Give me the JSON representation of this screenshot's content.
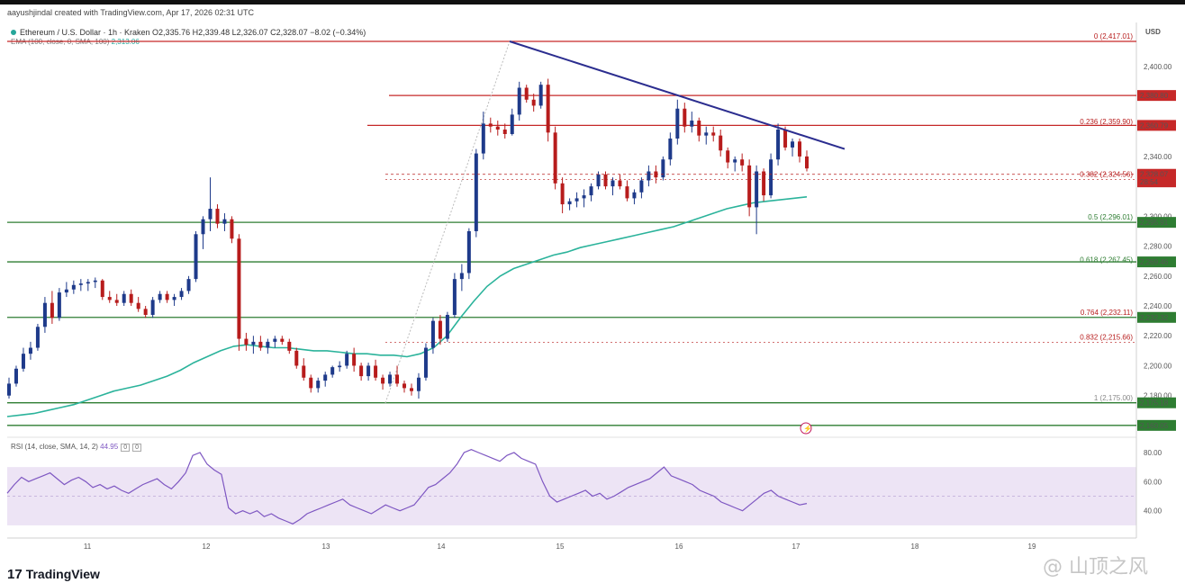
{
  "header": {
    "credit": "aayushjindal created with TradingView.com, Apr 17, 2026 02:31 UTC",
    "symbol": "Ethereum / U.S. Dollar · 1h · Kraken  O2,335.76  H2,339.48  L2,326.07  C2,328.07  −8.02 (−0.34%)",
    "ema_label": "EMA (100, close, 0, SMA, 100)",
    "ema_value": "2,313.06",
    "rsi_label": "RSI (14, close, SMA, 14, 2)",
    "rsi_value": "44.95",
    "rsi_box1": "0",
    "rsi_box2": "0"
  },
  "brand": {
    "logo_text": "TradingView",
    "logo_mark": "17",
    "watermark": "@ 山顶之风"
  },
  "colors": {
    "up": "#1e3a8a",
    "down": "#b71c1c",
    "ema": "#2bb39b",
    "trend": "#2b2d8f",
    "resistance": "#c62828",
    "support": "#2e7d32",
    "rsi": "#7e57c2",
    "rsi_band": "#ede4f5"
  },
  "chart_data": {
    "type": "candlestick",
    "currency": "USD",
    "x_ticks": [
      "11",
      "12",
      "13",
      "14",
      "15",
      "16",
      "17",
      "18",
      "19"
    ],
    "y_ticks": [
      "2,400.00",
      "2,340.00",
      "2,300.00",
      "2,280.00",
      "2,260.00",
      "2,240.00",
      "2,220.00",
      "2,200.00",
      "2,180.00"
    ],
    "y_tick_values": [
      2400,
      2340,
      2300,
      2280,
      2260,
      2240,
      2220,
      2200,
      2180
    ],
    "y_range": [
      2157,
      2424
    ],
    "price_labels": [
      {
        "text": "2,380.80",
        "value": 2380.8,
        "style": "red"
      },
      {
        "text": "2,360.79",
        "value": 2360.79,
        "style": "red"
      },
      {
        "text": "2,328.07",
        "value": 2328.07,
        "style": "red"
      },
      {
        "text": "28:54",
        "value": 2323,
        "style": "red"
      },
      {
        "text": "2,295.91",
        "value": 2295.91,
        "style": "green"
      },
      {
        "text": "2,269.46",
        "value": 2269.46,
        "style": "green"
      },
      {
        "text": "2,232.32",
        "value": 2232.32,
        "style": "green"
      },
      {
        "text": "2,175.18",
        "value": 2175.18,
        "style": "green"
      },
      {
        "text": "2,160.05",
        "value": 2160.05,
        "style": "green"
      }
    ],
    "horizontal_lines": [
      {
        "value": 2417.01,
        "style": "resistance"
      },
      {
        "value": 2380.8,
        "style": "resistance"
      },
      {
        "value": 2360.79,
        "style": "resistance"
      },
      {
        "value": 2295.91,
        "style": "support"
      },
      {
        "value": 2269.46,
        "style": "support"
      },
      {
        "value": 2232.32,
        "style": "support"
      },
      {
        "value": 2175.18,
        "style": "support"
      },
      {
        "value": 2160.05,
        "style": "support"
      }
    ],
    "fib_levels": [
      {
        "label": "0 (2,417.01)",
        "value": 2417.01
      },
      {
        "label": "0.236 (2,359.90)",
        "value": 2359.9
      },
      {
        "label": "0.382 (2,324.56)",
        "value": 2324.56
      },
      {
        "label": "0.5 (2,296.01)",
        "value": 2296.01
      },
      {
        "label": "0.618 (2,267.45)",
        "value": 2267.45
      },
      {
        "label": "0.764 (2,232.11)",
        "value": 2232.11
      },
      {
        "label": "0.832 (2,215.66)",
        "value": 2215.66
      },
      {
        "label": "1 (2,175.00)",
        "value": 2175.0
      }
    ],
    "candles": [
      [
        2180,
        2192,
        2178,
        2188
      ],
      [
        2188,
        2200,
        2186,
        2198
      ],
      [
        2198,
        2212,
        2196,
        2208
      ],
      [
        2208,
        2216,
        2204,
        2212
      ],
      [
        2212,
        2228,
        2210,
        2226
      ],
      [
        2226,
        2246,
        2222,
        2242
      ],
      [
        2242,
        2250,
        2228,
        2232
      ],
      [
        2232,
        2252,
        2230,
        2249
      ],
      [
        2249,
        2256,
        2246,
        2251
      ],
      [
        2251,
        2257,
        2248,
        2254
      ],
      [
        2254,
        2258,
        2250,
        2255
      ],
      [
        2255,
        2258,
        2250,
        2256
      ],
      [
        2256,
        2259,
        2252,
        2257
      ],
      [
        2257,
        2258,
        2244,
        2246
      ],
      [
        2246,
        2250,
        2242,
        2244
      ],
      [
        2244,
        2248,
        2240,
        2242
      ],
      [
        2242,
        2250,
        2240,
        2248
      ],
      [
        2248,
        2251,
        2240,
        2242
      ],
      [
        2242,
        2246,
        2236,
        2238
      ],
      [
        2238,
        2240,
        2232,
        2234
      ],
      [
        2234,
        2246,
        2232,
        2244
      ],
      [
        2244,
        2250,
        2242,
        2248
      ],
      [
        2248,
        2250,
        2242,
        2244
      ],
      [
        2244,
        2248,
        2240,
        2246
      ],
      [
        2246,
        2252,
        2244,
        2250
      ],
      [
        2250,
        2260,
        2248,
        2258
      ],
      [
        2258,
        2290,
        2256,
        2288
      ],
      [
        2288,
        2300,
        2278,
        2298
      ],
      [
        2298,
        2326,
        2290,
        2305
      ],
      [
        2305,
        2308,
        2292,
        2295
      ],
      [
        2295,
        2302,
        2290,
        2298
      ],
      [
        2298,
        2300,
        2282,
        2285
      ],
      [
        2285,
        2288,
        2210,
        2218
      ],
      [
        2218,
        2222,
        2210,
        2214
      ],
      [
        2214,
        2220,
        2208,
        2216
      ],
      [
        2216,
        2220,
        2210,
        2212
      ],
      [
        2212,
        2218,
        2208,
        2216
      ],
      [
        2216,
        2220,
        2212,
        2218
      ],
      [
        2218,
        2220,
        2214,
        2216
      ],
      [
        2216,
        2218,
        2208,
        2210
      ],
      [
        2210,
        2212,
        2198,
        2200
      ],
      [
        2200,
        2205,
        2190,
        2192
      ],
      [
        2192,
        2194,
        2182,
        2185
      ],
      [
        2185,
        2192,
        2182,
        2190
      ],
      [
        2190,
        2196,
        2186,
        2194
      ],
      [
        2194,
        2200,
        2192,
        2199
      ],
      [
        2199,
        2203,
        2196,
        2200
      ],
      [
        2200,
        2210,
        2198,
        2208
      ],
      [
        2208,
        2212,
        2196,
        2200
      ],
      [
        2200,
        2202,
        2190,
        2193
      ],
      [
        2193,
        2202,
        2190,
        2200
      ],
      [
        2200,
        2204,
        2190,
        2192
      ],
      [
        2192,
        2194,
        2184,
        2188
      ],
      [
        2188,
        2196,
        2186,
        2194
      ],
      [
        2194,
        2200,
        2186,
        2188
      ],
      [
        2188,
        2190,
        2182,
        2185
      ],
      [
        2185,
        2188,
        2180,
        2183
      ],
      [
        2183,
        2195,
        2178,
        2192
      ],
      [
        2192,
        2215,
        2190,
        2212
      ],
      [
        2212,
        2232,
        2208,
        2230
      ],
      [
        2230,
        2234,
        2214,
        2218
      ],
      [
        2218,
        2236,
        2216,
        2234
      ],
      [
        2234,
        2262,
        2232,
        2258
      ],
      [
        2258,
        2268,
        2250,
        2262
      ],
      [
        2262,
        2292,
        2258,
        2290
      ],
      [
        2290,
        2345,
        2286,
        2342
      ],
      [
        2342,
        2370,
        2338,
        2362
      ],
      [
        2362,
        2366,
        2356,
        2360
      ],
      [
        2360,
        2364,
        2354,
        2358
      ],
      [
        2358,
        2362,
        2352,
        2355
      ],
      [
        2355,
        2372,
        2354,
        2368
      ],
      [
        2368,
        2390,
        2364,
        2386
      ],
      [
        2386,
        2388,
        2376,
        2378
      ],
      [
        2378,
        2382,
        2370,
        2374
      ],
      [
        2374,
        2390,
        2372,
        2388
      ],
      [
        2388,
        2392,
        2350,
        2356
      ],
      [
        2356,
        2360,
        2318,
        2322
      ],
      [
        2322,
        2326,
        2302,
        2308
      ],
      [
        2308,
        2312,
        2304,
        2310
      ],
      [
        2310,
        2316,
        2306,
        2312
      ],
      [
        2312,
        2318,
        2306,
        2314
      ],
      [
        2314,
        2322,
        2310,
        2320
      ],
      [
        2320,
        2330,
        2318,
        2328
      ],
      [
        2328,
        2330,
        2318,
        2320
      ],
      [
        2320,
        2326,
        2314,
        2324
      ],
      [
        2324,
        2328,
        2318,
        2320
      ],
      [
        2320,
        2324,
        2310,
        2312
      ],
      [
        2312,
        2318,
        2308,
        2316
      ],
      [
        2316,
        2326,
        2312,
        2324
      ],
      [
        2324,
        2334,
        2320,
        2330
      ],
      [
        2330,
        2334,
        2322,
        2326
      ],
      [
        2326,
        2340,
        2324,
        2338
      ],
      [
        2338,
        2356,
        2334,
        2352
      ],
      [
        2352,
        2378,
        2348,
        2372
      ],
      [
        2372,
        2376,
        2356,
        2360
      ],
      [
        2360,
        2370,
        2356,
        2364
      ],
      [
        2364,
        2366,
        2350,
        2354
      ],
      [
        2354,
        2360,
        2348,
        2356
      ],
      [
        2356,
        2360,
        2350,
        2354
      ],
      [
        2354,
        2358,
        2340,
        2344
      ],
      [
        2344,
        2346,
        2332,
        2336
      ],
      [
        2336,
        2340,
        2330,
        2338
      ],
      [
        2338,
        2342,
        2330,
        2334
      ],
      [
        2334,
        2338,
        2300,
        2306
      ],
      [
        2306,
        2334,
        2288,
        2330
      ],
      [
        2330,
        2332,
        2310,
        2314
      ],
      [
        2314,
        2342,
        2312,
        2338
      ],
      [
        2338,
        2362,
        2334,
        2358
      ],
      [
        2358,
        2360,
        2344,
        2346
      ],
      [
        2346,
        2352,
        2340,
        2350
      ],
      [
        2350,
        2352,
        2336,
        2340
      ],
      [
        2340,
        2344,
        2330,
        2332
      ]
    ],
    "ema": [
      2166,
      2167,
      2168,
      2170,
      2172,
      2174,
      2177,
      2180,
      2183,
      2185,
      2187,
      2190,
      2193,
      2197,
      2202,
      2206,
      2210,
      2213,
      2214,
      2213,
      2212,
      2212,
      2211,
      2210,
      2210,
      2209,
      2208,
      2208,
      2207,
      2207,
      2206,
      2208,
      2212,
      2220,
      2232,
      2243,
      2253,
      2260,
      2265,
      2268,
      2271,
      2274,
      2276,
      2279,
      2281,
      2283,
      2285,
      2287,
      2289,
      2291,
      2293,
      2296,
      2299,
      2302,
      2305,
      2307,
      2309,
      2310,
      2311,
      2312,
      2313
    ],
    "trendline": {
      "from": [
        2417,
        "Apr 14 14:00"
      ],
      "to": [
        2345,
        "Apr 17 12:00"
      ]
    },
    "rsi": {
      "ticks": [
        "80.00",
        "60.00",
        "40.00"
      ],
      "tick_values": [
        80,
        60,
        40
      ],
      "band": [
        30,
        70
      ],
      "values": [
        52,
        58,
        63,
        60,
        62,
        64,
        66,
        62,
        58,
        61,
        63,
        60,
        56,
        58,
        55,
        57,
        54,
        52,
        55,
        58,
        60,
        62,
        58,
        55,
        60,
        66,
        78,
        80,
        72,
        68,
        65,
        42,
        38,
        40,
        38,
        40,
        36,
        38,
        35,
        33,
        31,
        34,
        38,
        40,
        42,
        44,
        46,
        48,
        44,
        42,
        40,
        38,
        41,
        44,
        42,
        40,
        42,
        44,
        50,
        56,
        58,
        62,
        66,
        72,
        80,
        82,
        80,
        78,
        76,
        74,
        78,
        80,
        76,
        74,
        72,
        60,
        50,
        46,
        48,
        50,
        52,
        54,
        50,
        52,
        48,
        50,
        53,
        56,
        58,
        60,
        62,
        66,
        70,
        64,
        62,
        60,
        58,
        54,
        52,
        50,
        46,
        44,
        42,
        40,
        44,
        48,
        52,
        54,
        50,
        48,
        46,
        44,
        45
      ]
    }
  }
}
